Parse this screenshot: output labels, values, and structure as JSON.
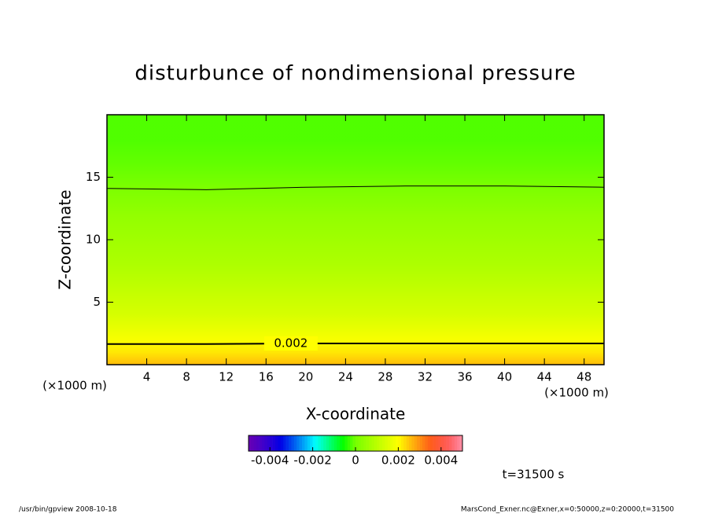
{
  "chart_data": {
    "type": "contour",
    "title": "disturbunce of nondimensional pressure",
    "xlabel": "X-coordinate",
    "ylabel": "Z-coordinate",
    "xunit": "(×1000 m)",
    "yunit": "(×1000 m)",
    "xlim": [
      0,
      50
    ],
    "ylim": [
      0,
      20
    ],
    "xticks": [
      4,
      8,
      12,
      16,
      20,
      24,
      28,
      32,
      36,
      40,
      44,
      48
    ],
    "yticks": [
      5,
      10,
      15
    ],
    "field": {
      "z": [
        0,
        1,
        2,
        4,
        6,
        8,
        10,
        12,
        14,
        16,
        18,
        20
      ],
      "values": [
        0.0026,
        0.0022,
        0.0019,
        0.0014,
        0.0011,
        0.0008,
        0.0006,
        0.0004,
        0.0001,
        -0.0001,
        -0.0002,
        -0.0002
      ]
    },
    "contours": [
      {
        "level": 0.002,
        "x": [
          0,
          10,
          20,
          30,
          40,
          50
        ],
        "z": [
          1.65,
          1.65,
          1.7,
          1.7,
          1.7,
          1.7
        ]
      },
      {
        "x": [
          0,
          10,
          20,
          30,
          40,
          50
        ],
        "z": [
          14.1,
          14.0,
          14.2,
          14.3,
          14.3,
          14.2
        ]
      }
    ],
    "colorbar": {
      "lim": [
        -0.005,
        0.005
      ],
      "ticks": [
        -0.004,
        -0.002,
        0,
        0.002,
        0.004
      ]
    },
    "time_label": "t=31500 s",
    "footer_left": "/usr/bin/gpview   2008-10-18",
    "footer_right": "MarsCond_Exner.nc@Exner,x=0:50000,z=0:20000,t=31500"
  }
}
